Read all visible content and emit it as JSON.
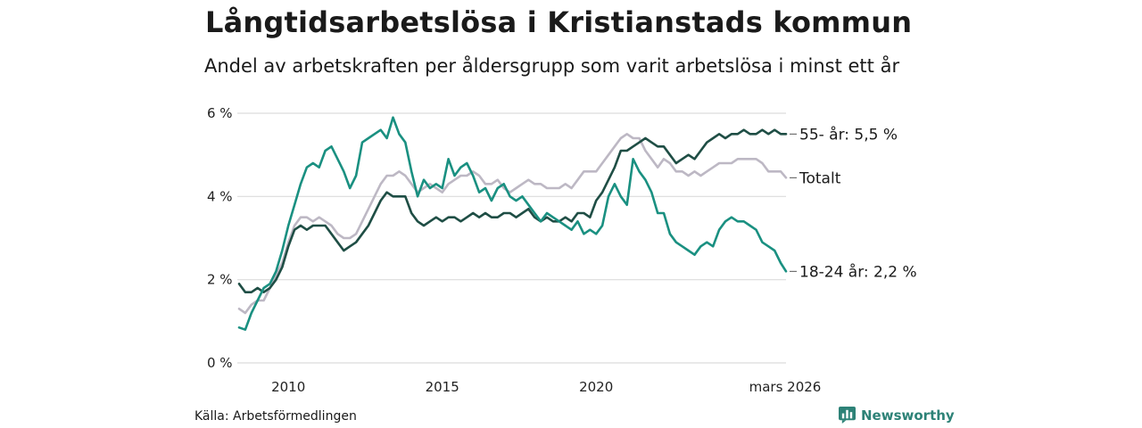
{
  "header": {
    "title": "Långtidsarbetslösa i Kristianstads kommun",
    "subtitle": "Andel av arbetskraften per åldersgrupp som varit arbetslösa i minst ett år"
  },
  "footer": {
    "source": "Källa: Arbetsförmedlingen",
    "brand": "Newsworthy",
    "brand_icon": "newsworthy-logo-icon",
    "brand_color": "#2d8277"
  },
  "chart_data": {
    "type": "line",
    "title": "Långtidsarbetslösa i Kristianstads kommun",
    "xlabel": "",
    "ylabel": "",
    "ylim": [
      0,
      6
    ],
    "xlim": [
      2008.4,
      2026.17
    ],
    "y_ticks": [
      0,
      2,
      4,
      6
    ],
    "y_tick_labels": [
      "0 %",
      "2 %",
      "4 %",
      "6 %"
    ],
    "x_ticks": [
      2010,
      2015,
      2020,
      2026.17
    ],
    "x_tick_labels": [
      "2010",
      "2015",
      "2020",
      "mars 2026"
    ],
    "grid": true,
    "series": [
      {
        "name": "Totalt",
        "label": "Totalt",
        "color": "#bdb8c4",
        "points": [
          [
            2008.4,
            1.3
          ],
          [
            2008.6,
            1.2
          ],
          [
            2008.8,
            1.4
          ],
          [
            2009.0,
            1.5
          ],
          [
            2009.2,
            1.5
          ],
          [
            2009.4,
            1.8
          ],
          [
            2009.6,
            2.1
          ],
          [
            2009.8,
            2.4
          ],
          [
            2010.0,
            2.9
          ],
          [
            2010.2,
            3.3
          ],
          [
            2010.4,
            3.5
          ],
          [
            2010.6,
            3.5
          ],
          [
            2010.8,
            3.4
          ],
          [
            2011.0,
            3.5
          ],
          [
            2011.2,
            3.4
          ],
          [
            2011.4,
            3.3
          ],
          [
            2011.6,
            3.1
          ],
          [
            2011.8,
            3.0
          ],
          [
            2012.0,
            3.0
          ],
          [
            2012.2,
            3.1
          ],
          [
            2012.4,
            3.4
          ],
          [
            2012.6,
            3.7
          ],
          [
            2012.8,
            4.0
          ],
          [
            2013.0,
            4.3
          ],
          [
            2013.2,
            4.5
          ],
          [
            2013.4,
            4.5
          ],
          [
            2013.6,
            4.6
          ],
          [
            2013.8,
            4.5
          ],
          [
            2014.0,
            4.3
          ],
          [
            2014.2,
            4.1
          ],
          [
            2014.4,
            4.2
          ],
          [
            2014.6,
            4.3
          ],
          [
            2014.8,
            4.2
          ],
          [
            2015.0,
            4.1
          ],
          [
            2015.2,
            4.3
          ],
          [
            2015.4,
            4.4
          ],
          [
            2015.6,
            4.5
          ],
          [
            2015.8,
            4.5
          ],
          [
            2016.0,
            4.6
          ],
          [
            2016.2,
            4.5
          ],
          [
            2016.4,
            4.3
          ],
          [
            2016.6,
            4.3
          ],
          [
            2016.8,
            4.4
          ],
          [
            2017.0,
            4.2
          ],
          [
            2017.2,
            4.1
          ],
          [
            2017.4,
            4.2
          ],
          [
            2017.6,
            4.3
          ],
          [
            2017.8,
            4.4
          ],
          [
            2018.0,
            4.3
          ],
          [
            2018.2,
            4.3
          ],
          [
            2018.4,
            4.2
          ],
          [
            2018.6,
            4.2
          ],
          [
            2018.8,
            4.2
          ],
          [
            2019.0,
            4.3
          ],
          [
            2019.2,
            4.2
          ],
          [
            2019.4,
            4.4
          ],
          [
            2019.6,
            4.6
          ],
          [
            2019.8,
            4.6
          ],
          [
            2020.0,
            4.6
          ],
          [
            2020.2,
            4.8
          ],
          [
            2020.4,
            5.0
          ],
          [
            2020.6,
            5.2
          ],
          [
            2020.8,
            5.4
          ],
          [
            2021.0,
            5.5
          ],
          [
            2021.2,
            5.4
          ],
          [
            2021.4,
            5.4
          ],
          [
            2021.6,
            5.1
          ],
          [
            2021.8,
            4.9
          ],
          [
            2022.0,
            4.7
          ],
          [
            2022.2,
            4.9
          ],
          [
            2022.4,
            4.8
          ],
          [
            2022.6,
            4.6
          ],
          [
            2022.8,
            4.6
          ],
          [
            2023.0,
            4.5
          ],
          [
            2023.2,
            4.6
          ],
          [
            2023.4,
            4.5
          ],
          [
            2023.6,
            4.6
          ],
          [
            2023.8,
            4.7
          ],
          [
            2024.0,
            4.8
          ],
          [
            2024.2,
            4.8
          ],
          [
            2024.4,
            4.8
          ],
          [
            2024.6,
            4.9
          ],
          [
            2024.8,
            4.9
          ],
          [
            2025.0,
            4.9
          ],
          [
            2025.2,
            4.9
          ],
          [
            2025.4,
            4.8
          ],
          [
            2025.6,
            4.6
          ],
          [
            2025.8,
            4.6
          ],
          [
            2026.0,
            4.6
          ],
          [
            2026.17,
            4.45
          ]
        ]
      },
      {
        "name": "55- år",
        "label": "55- år: 5,5 %",
        "color": "#1f4e45",
        "points": [
          [
            2008.4,
            1.9
          ],
          [
            2008.6,
            1.7
          ],
          [
            2008.8,
            1.7
          ],
          [
            2009.0,
            1.8
          ],
          [
            2009.2,
            1.7
          ],
          [
            2009.4,
            1.8
          ],
          [
            2009.6,
            2.0
          ],
          [
            2009.8,
            2.3
          ],
          [
            2010.0,
            2.8
          ],
          [
            2010.2,
            3.2
          ],
          [
            2010.4,
            3.3
          ],
          [
            2010.6,
            3.2
          ],
          [
            2010.8,
            3.3
          ],
          [
            2011.0,
            3.3
          ],
          [
            2011.2,
            3.3
          ],
          [
            2011.4,
            3.1
          ],
          [
            2011.6,
            2.9
          ],
          [
            2011.8,
            2.7
          ],
          [
            2012.0,
            2.8
          ],
          [
            2012.2,
            2.9
          ],
          [
            2012.4,
            3.1
          ],
          [
            2012.6,
            3.3
          ],
          [
            2012.8,
            3.6
          ],
          [
            2013.0,
            3.9
          ],
          [
            2013.2,
            4.1
          ],
          [
            2013.4,
            4.0
          ],
          [
            2013.6,
            4.0
          ],
          [
            2013.8,
            4.0
          ],
          [
            2014.0,
            3.6
          ],
          [
            2014.2,
            3.4
          ],
          [
            2014.4,
            3.3
          ],
          [
            2014.6,
            3.4
          ],
          [
            2014.8,
            3.5
          ],
          [
            2015.0,
            3.4
          ],
          [
            2015.2,
            3.5
          ],
          [
            2015.4,
            3.5
          ],
          [
            2015.6,
            3.4
          ],
          [
            2015.8,
            3.5
          ],
          [
            2016.0,
            3.6
          ],
          [
            2016.2,
            3.5
          ],
          [
            2016.4,
            3.6
          ],
          [
            2016.6,
            3.5
          ],
          [
            2016.8,
            3.5
          ],
          [
            2017.0,
            3.6
          ],
          [
            2017.2,
            3.6
          ],
          [
            2017.4,
            3.5
          ],
          [
            2017.6,
            3.6
          ],
          [
            2017.8,
            3.7
          ],
          [
            2018.0,
            3.5
          ],
          [
            2018.2,
            3.4
          ],
          [
            2018.4,
            3.5
          ],
          [
            2018.6,
            3.4
          ],
          [
            2018.8,
            3.4
          ],
          [
            2019.0,
            3.5
          ],
          [
            2019.2,
            3.4
          ],
          [
            2019.4,
            3.6
          ],
          [
            2019.6,
            3.6
          ],
          [
            2019.8,
            3.5
          ],
          [
            2020.0,
            3.9
          ],
          [
            2020.2,
            4.1
          ],
          [
            2020.4,
            4.4
          ],
          [
            2020.6,
            4.7
          ],
          [
            2020.8,
            5.1
          ],
          [
            2021.0,
            5.1
          ],
          [
            2021.2,
            5.2
          ],
          [
            2021.4,
            5.3
          ],
          [
            2021.6,
            5.4
          ],
          [
            2021.8,
            5.3
          ],
          [
            2022.0,
            5.2
          ],
          [
            2022.2,
            5.2
          ],
          [
            2022.4,
            5.0
          ],
          [
            2022.6,
            4.8
          ],
          [
            2022.8,
            4.9
          ],
          [
            2023.0,
            5.0
          ],
          [
            2023.2,
            4.9
          ],
          [
            2023.4,
            5.1
          ],
          [
            2023.6,
            5.3
          ],
          [
            2023.8,
            5.4
          ],
          [
            2024.0,
            5.5
          ],
          [
            2024.2,
            5.4
          ],
          [
            2024.4,
            5.5
          ],
          [
            2024.6,
            5.5
          ],
          [
            2024.8,
            5.6
          ],
          [
            2025.0,
            5.5
          ],
          [
            2025.2,
            5.5
          ],
          [
            2025.4,
            5.6
          ],
          [
            2025.6,
            5.5
          ],
          [
            2025.8,
            5.6
          ],
          [
            2026.0,
            5.5
          ],
          [
            2026.17,
            5.5
          ]
        ]
      },
      {
        "name": "18-24 år",
        "label": "18-24 år: 2,2 %",
        "color": "#1a9081",
        "points": [
          [
            2008.4,
            0.85
          ],
          [
            2008.6,
            0.8
          ],
          [
            2008.8,
            1.2
          ],
          [
            2009.0,
            1.5
          ],
          [
            2009.2,
            1.8
          ],
          [
            2009.4,
            1.9
          ],
          [
            2009.6,
            2.2
          ],
          [
            2009.8,
            2.7
          ],
          [
            2010.0,
            3.3
          ],
          [
            2010.2,
            3.8
          ],
          [
            2010.4,
            4.3
          ],
          [
            2010.6,
            4.7
          ],
          [
            2010.8,
            4.8
          ],
          [
            2011.0,
            4.7
          ],
          [
            2011.2,
            5.1
          ],
          [
            2011.4,
            5.2
          ],
          [
            2011.6,
            4.9
          ],
          [
            2011.8,
            4.6
          ],
          [
            2012.0,
            4.2
          ],
          [
            2012.2,
            4.5
          ],
          [
            2012.4,
            5.3
          ],
          [
            2012.6,
            5.4
          ],
          [
            2012.8,
            5.5
          ],
          [
            2013.0,
            5.6
          ],
          [
            2013.2,
            5.4
          ],
          [
            2013.4,
            5.9
          ],
          [
            2013.6,
            5.5
          ],
          [
            2013.8,
            5.3
          ],
          [
            2014.0,
            4.6
          ],
          [
            2014.2,
            4.0
          ],
          [
            2014.4,
            4.4
          ],
          [
            2014.6,
            4.2
          ],
          [
            2014.8,
            4.3
          ],
          [
            2015.0,
            4.2
          ],
          [
            2015.2,
            4.9
          ],
          [
            2015.4,
            4.5
          ],
          [
            2015.6,
            4.7
          ],
          [
            2015.8,
            4.8
          ],
          [
            2016.0,
            4.5
          ],
          [
            2016.2,
            4.1
          ],
          [
            2016.4,
            4.2
          ],
          [
            2016.6,
            3.9
          ],
          [
            2016.8,
            4.2
          ],
          [
            2017.0,
            4.3
          ],
          [
            2017.2,
            4.0
          ],
          [
            2017.4,
            3.9
          ],
          [
            2017.6,
            4.0
          ],
          [
            2017.8,
            3.8
          ],
          [
            2018.0,
            3.6
          ],
          [
            2018.2,
            3.4
          ],
          [
            2018.4,
            3.6
          ],
          [
            2018.6,
            3.5
          ],
          [
            2018.8,
            3.4
          ],
          [
            2019.0,
            3.3
          ],
          [
            2019.2,
            3.2
          ],
          [
            2019.4,
            3.4
          ],
          [
            2019.6,
            3.1
          ],
          [
            2019.8,
            3.2
          ],
          [
            2020.0,
            3.1
          ],
          [
            2020.2,
            3.3
          ],
          [
            2020.4,
            4.0
          ],
          [
            2020.6,
            4.3
          ],
          [
            2020.8,
            4.0
          ],
          [
            2021.0,
            3.8
          ],
          [
            2021.2,
            4.9
          ],
          [
            2021.4,
            4.6
          ],
          [
            2021.6,
            4.4
          ],
          [
            2021.8,
            4.1
          ],
          [
            2022.0,
            3.6
          ],
          [
            2022.2,
            3.6
          ],
          [
            2022.4,
            3.1
          ],
          [
            2022.6,
            2.9
          ],
          [
            2022.8,
            2.8
          ],
          [
            2023.0,
            2.7
          ],
          [
            2023.2,
            2.6
          ],
          [
            2023.4,
            2.8
          ],
          [
            2023.6,
            2.9
          ],
          [
            2023.8,
            2.8
          ],
          [
            2024.0,
            3.2
          ],
          [
            2024.2,
            3.4
          ],
          [
            2024.4,
            3.5
          ],
          [
            2024.6,
            3.4
          ],
          [
            2024.8,
            3.4
          ],
          [
            2025.0,
            3.3
          ],
          [
            2025.2,
            3.2
          ],
          [
            2025.4,
            2.9
          ],
          [
            2025.6,
            2.8
          ],
          [
            2025.8,
            2.7
          ],
          [
            2026.0,
            2.4
          ],
          [
            2026.17,
            2.2
          ]
        ]
      }
    ]
  }
}
